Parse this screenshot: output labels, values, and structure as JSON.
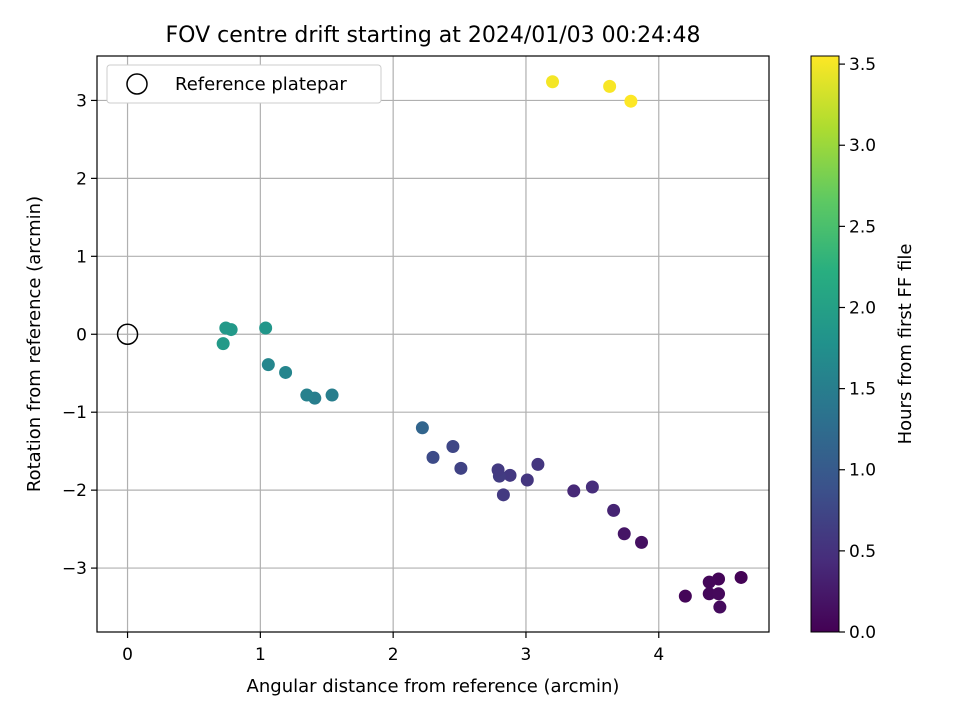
{
  "chart_data": {
    "type": "scatter",
    "title": "FOV centre drift starting at 2024/01/03 00:24:48",
    "xlabel": "Angular distance from reference (arcmin)",
    "ylabel": "Rotation from reference (arcmin)",
    "xlim": [
      -0.23,
      4.83
    ],
    "ylim": [
      -3.82,
      3.57
    ],
    "x_ticks": [
      0,
      1,
      2,
      3,
      4
    ],
    "x_tick_labels": [
      "0",
      "1",
      "2",
      "3",
      "4"
    ],
    "y_ticks": [
      -3,
      -2,
      -1,
      0,
      1,
      2,
      3
    ],
    "y_tick_labels": [
      "−3",
      "−2",
      "−1",
      "0",
      "1",
      "2",
      "3"
    ],
    "grid": true,
    "legend": {
      "placement": "upper-left",
      "entries": [
        {
          "label": "Reference platepar",
          "marker": "open-circle"
        }
      ]
    },
    "reference_point": {
      "x": 0,
      "y": 0
    },
    "colorbar": {
      "label": "Hours from first FF file",
      "colormap": "viridis",
      "range": [
        0.0,
        3.55
      ],
      "ticks": [
        0.0,
        0.5,
        1.0,
        1.5,
        2.0,
        2.5,
        3.0,
        3.5
      ],
      "tick_labels": [
        "0.0",
        "0.5",
        "1.0",
        "1.5",
        "2.0",
        "2.5",
        "3.0",
        "3.5"
      ]
    },
    "points": [
      {
        "x": 4.62,
        "y": -3.12,
        "c": 0.02
      },
      {
        "x": 4.45,
        "y": -3.14,
        "c": 0.04
      },
      {
        "x": 4.38,
        "y": -3.18,
        "c": 0.06
      },
      {
        "x": 4.2,
        "y": -3.36,
        "c": 0.05
      },
      {
        "x": 4.38,
        "y": -3.33,
        "c": 0.07
      },
      {
        "x": 4.45,
        "y": -3.33,
        "c": 0.08
      },
      {
        "x": 4.46,
        "y": -3.5,
        "c": 0.1
      },
      {
        "x": 3.87,
        "y": -2.67,
        "c": 0.15
      },
      {
        "x": 3.74,
        "y": -2.56,
        "c": 0.2
      },
      {
        "x": 3.66,
        "y": -2.26,
        "c": 0.35
      },
      {
        "x": 3.5,
        "y": -1.96,
        "c": 0.45
      },
      {
        "x": 3.36,
        "y": -2.01,
        "c": 0.4
      },
      {
        "x": 3.09,
        "y": -1.67,
        "c": 0.55
      },
      {
        "x": 3.01,
        "y": -1.87,
        "c": 0.55
      },
      {
        "x": 2.88,
        "y": -1.81,
        "c": 0.58
      },
      {
        "x": 2.8,
        "y": -1.82,
        "c": 0.62
      },
      {
        "x": 2.79,
        "y": -1.74,
        "c": 0.6
      },
      {
        "x": 2.83,
        "y": -2.06,
        "c": 0.6
      },
      {
        "x": 2.51,
        "y": -1.72,
        "c": 0.7
      },
      {
        "x": 2.45,
        "y": -1.44,
        "c": 0.75
      },
      {
        "x": 2.3,
        "y": -1.58,
        "c": 0.8
      },
      {
        "x": 2.22,
        "y": -1.2,
        "c": 1.15
      },
      {
        "x": 1.54,
        "y": -0.78,
        "c": 1.5
      },
      {
        "x": 1.41,
        "y": -0.82,
        "c": 1.5
      },
      {
        "x": 1.35,
        "y": -0.78,
        "c": 1.55
      },
      {
        "x": 1.19,
        "y": -0.49,
        "c": 1.6
      },
      {
        "x": 1.06,
        "y": -0.39,
        "c": 1.62
      },
      {
        "x": 1.04,
        "y": 0.08,
        "c": 1.85
      },
      {
        "x": 0.78,
        "y": 0.06,
        "c": 1.9
      },
      {
        "x": 0.74,
        "y": 0.08,
        "c": 1.9
      },
      {
        "x": 0.72,
        "y": -0.12,
        "c": 1.92
      },
      {
        "x": 3.2,
        "y": 3.24,
        "c": 3.5
      },
      {
        "x": 3.63,
        "y": 3.18,
        "c": 3.52
      },
      {
        "x": 3.79,
        "y": 2.99,
        "c": 3.55
      }
    ]
  }
}
